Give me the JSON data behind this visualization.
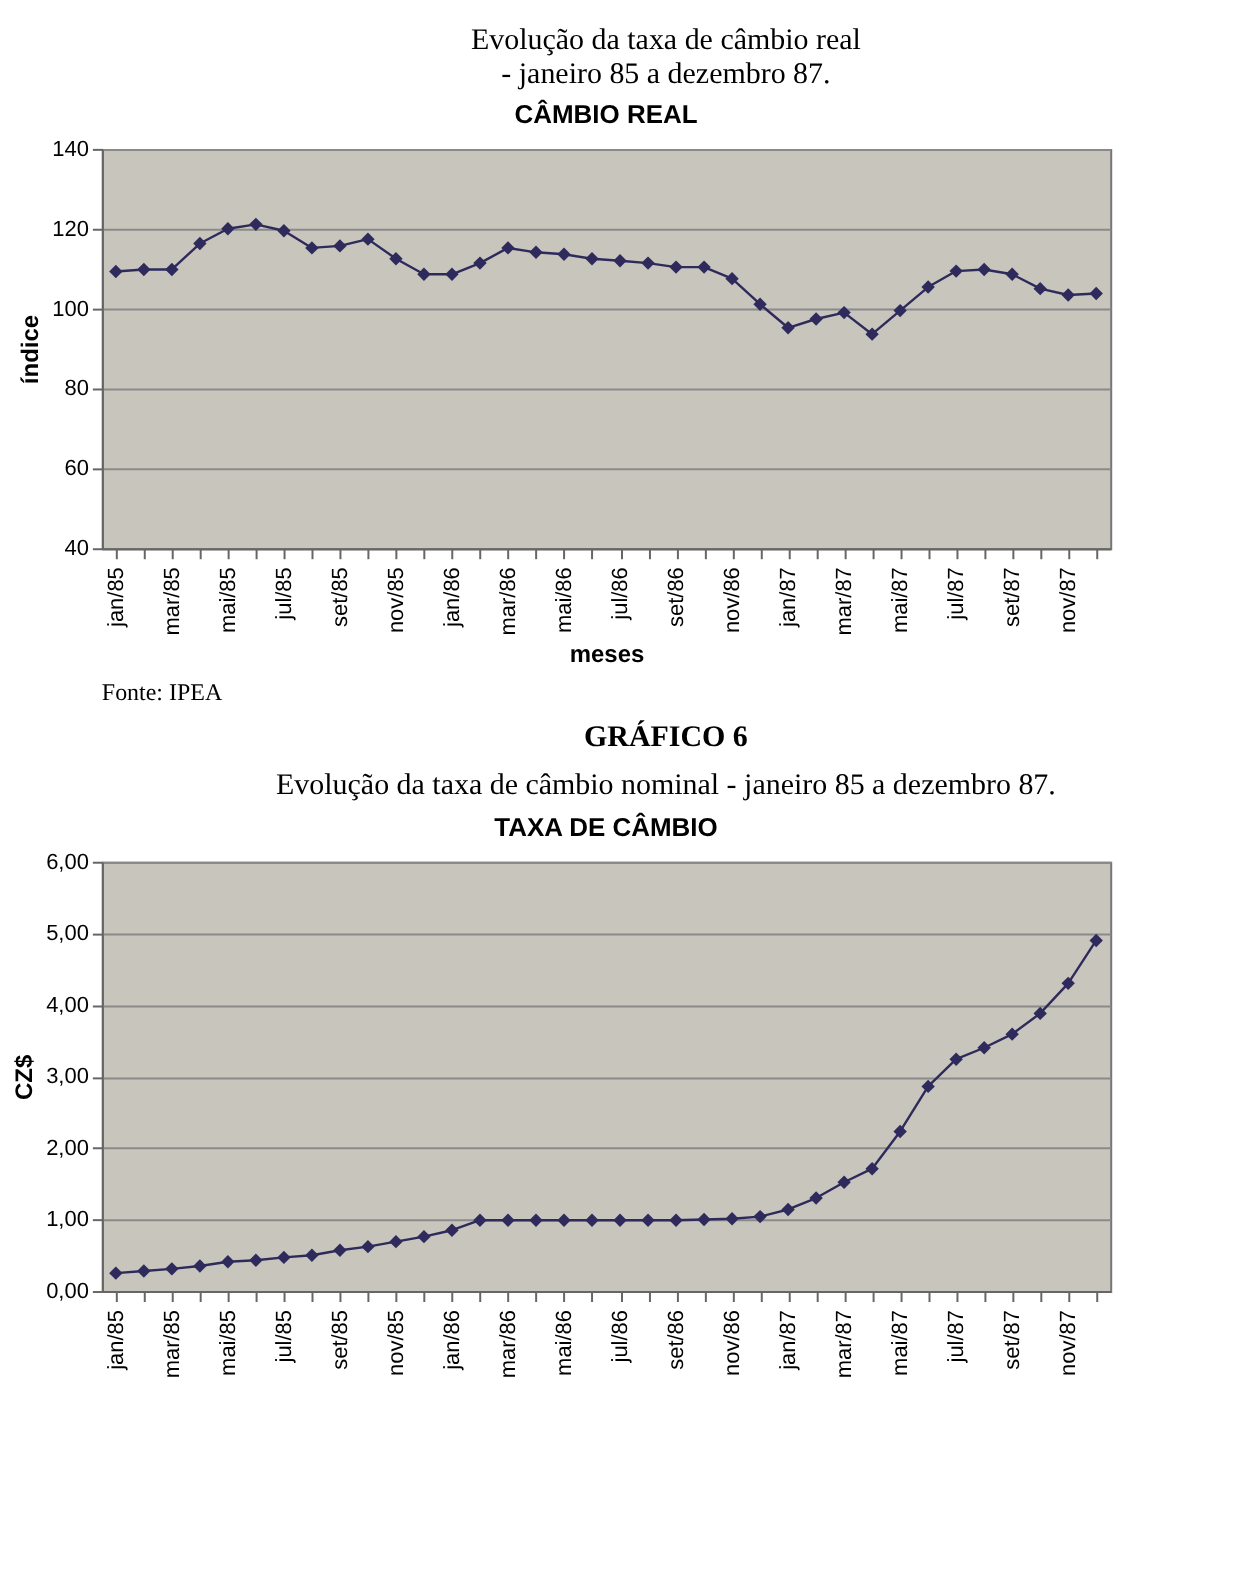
{
  "chart_data": [
    {
      "type": "line",
      "title": "CÂMBIO REAL",
      "xlabel": "meses",
      "ylabel": "índice",
      "annotations": [
        "Evolução da taxa de câmbio real\n- janeiro 85 a dezembro 87.",
        "Fonte: IPEA"
      ],
      "categories": [
        "jan/85",
        null,
        "mar/85",
        null,
        "mai/85",
        null,
        "jul/85",
        null,
        "set/85",
        null,
        "nov/85",
        null,
        "jan/86",
        null,
        "mar/86",
        null,
        "mai/86",
        null,
        "jul/86",
        null,
        "set/86",
        null,
        "nov/86",
        null,
        "jan/87",
        null,
        "mar/87",
        null,
        "mai/87",
        null,
        "jul/87",
        null,
        "set/87",
        null,
        "nov/87",
        null
      ],
      "series": [
        {
          "color": "#2e2a5c",
          "values": [
            109.3,
            109.8,
            109.8,
            116.3,
            120,
            121.1,
            119.5,
            115.2,
            115.7,
            117.4,
            112.5,
            108.6,
            108.6,
            111.4,
            115.2,
            114.1,
            113.6,
            112.5,
            112,
            111.4,
            110.4,
            110.4,
            107.5,
            101.1,
            95.2,
            97.4,
            99,
            93.6,
            99.5,
            105.4,
            109.4,
            109.8,
            108.6,
            105,
            103.4,
            103.8
          ]
        }
      ],
      "ylim": [
        40,
        140
      ],
      "yticks": [
        40,
        60,
        80,
        100,
        120,
        140
      ],
      "grid": "y",
      "marker": "diamond",
      "line_style": "solid"
    },
    {
      "type": "line",
      "title": "TAXA DE CÂMBIO",
      "ylabel": "CZ$",
      "annotations": [
        "GRÁFICO 6",
        "Evolução da taxa de câmbio nominal - janeiro 85 a dezembro 87."
      ],
      "categories": [
        "jan/85",
        null,
        "mar/85",
        null,
        "mai/85",
        null,
        "jul/85",
        null,
        "set/85",
        null,
        "nov/85",
        null,
        "jan/86",
        null,
        "mar/86",
        null,
        "mai/86",
        null,
        "jul/86",
        null,
        "set/86",
        null,
        "nov/86",
        null,
        "jan/87",
        null,
        "mar/87",
        null,
        "mai/87",
        null,
        "jul/87",
        null,
        "set/87",
        null,
        "nov/87",
        null
      ],
      "series": [
        {
          "color": "#2e2a5c",
          "values": [
            0.25,
            0.28,
            0.31,
            0.35,
            0.41,
            0.43,
            0.47,
            0.5,
            0.57,
            0.62,
            0.69,
            0.76,
            0.85,
            0.99,
            0.99,
            0.99,
            0.99,
            0.99,
            0.99,
            0.99,
            0.99,
            1.0,
            1.01,
            1.04,
            1.14,
            1.3,
            1.52,
            1.71,
            2.23,
            2.86,
            3.24,
            3.4,
            3.59,
            3.88,
            4.3,
            4.9
          ]
        }
      ],
      "ylim": [
        0,
        6
      ],
      "yticks": [
        {
          "value": 0,
          "label": "0,00"
        },
        {
          "value": 1,
          "label": "1,00"
        },
        {
          "value": 2,
          "label": "2,00"
        },
        {
          "value": 3,
          "label": "3,00"
        },
        {
          "value": 4,
          "label": "4,00"
        },
        {
          "value": 5,
          "label": "5,00"
        },
        {
          "value": 6,
          "label": "6,00"
        }
      ],
      "grid": "y",
      "marker": "diamond",
      "line_style": "solid"
    }
  ]
}
